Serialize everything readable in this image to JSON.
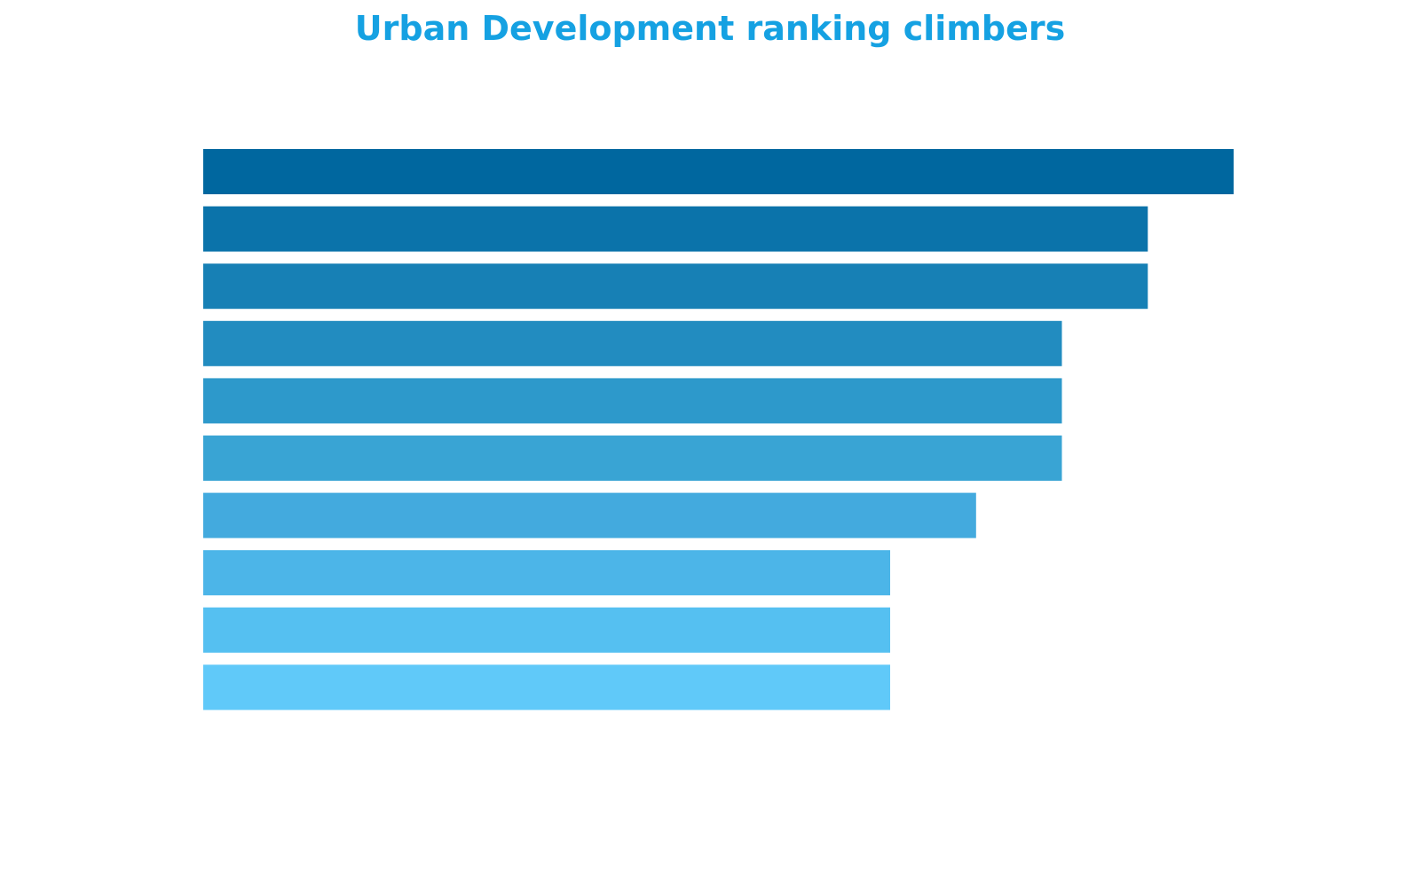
{
  "chart_data": {
    "type": "bar",
    "orientation": "horizontal",
    "title": "Urban Development ranking climbers",
    "xlabel": "",
    "ylabel": "",
    "categories": [
      "",
      "",
      "",
      "",
      "",
      "",
      "",
      "",
      "",
      ""
    ],
    "values": [
      12,
      11,
      11,
      10,
      10,
      10,
      9,
      8,
      8,
      8
    ],
    "xlim": [
      0,
      12
    ],
    "grid": false,
    "legend": "none",
    "colors": [
      "#00679f",
      "#0b73aa",
      "#1780b5",
      "#228cc0",
      "#2d99cb",
      "#39a4d4",
      "#43aade",
      "#4cb5e8",
      "#55c0f1",
      "#60c9f9"
    ],
    "title_color": "#15a1e2"
  }
}
